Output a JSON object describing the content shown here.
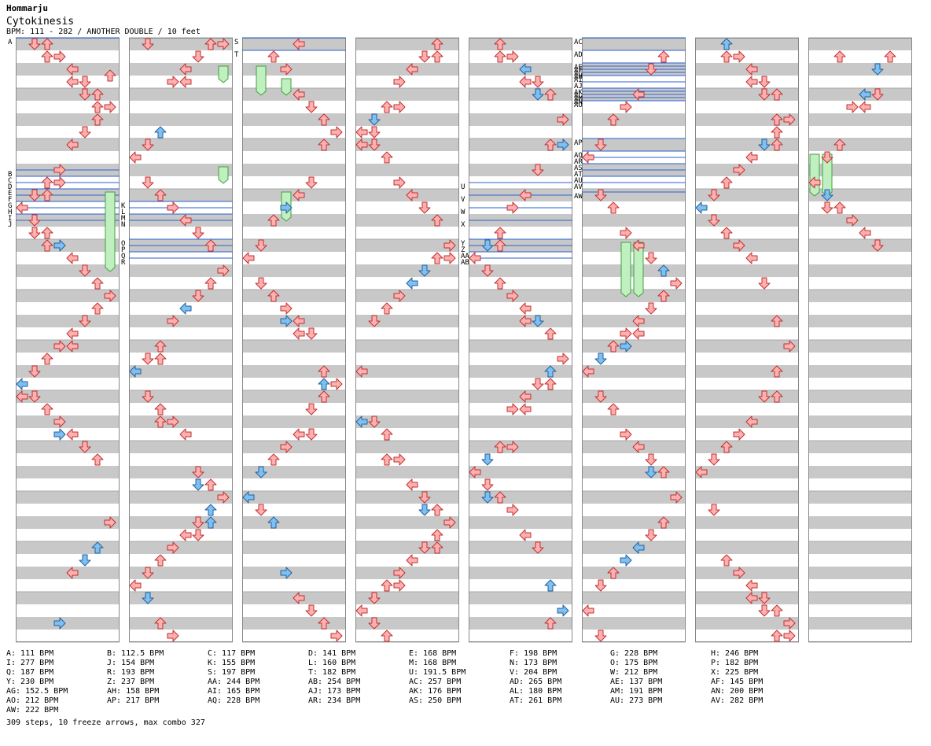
{
  "header": {
    "title": "Hommarju",
    "song": "Cytokinesis",
    "info": "BPM: 111 - 282 / ANOTHER DOUBLE / 10 feet"
  },
  "colors": {
    "red_arrow": "#ffb0b0",
    "red_edge": "#c03030",
    "blue_arrow": "#80c0f0",
    "blue_edge": "#2060a0",
    "freeze": "#c0f0c0",
    "freeze_edge": "#40a040",
    "band": "#c8c8c8",
    "bpm_line": "#2b5fd0"
  },
  "chart_data": {
    "type": "step-chart",
    "columns": 8,
    "measures_per_column": 4,
    "section_labels": [
      {
        "col": 0,
        "measure": 0,
        "sub": 0,
        "label": "A"
      },
      {
        "col": 0,
        "measure": 2,
        "sub": 10,
        "label": "B"
      },
      {
        "col": 0,
        "measure": 2,
        "sub": 12,
        "label": "C"
      },
      {
        "col": 0,
        "measure": 2,
        "sub": 14,
        "label": "D"
      },
      {
        "col": 0,
        "measure": 3,
        "sub": 0,
        "label": "E"
      },
      {
        "col": 0,
        "measure": 3,
        "sub": 2,
        "label": "F"
      },
      {
        "col": 0,
        "measure": 3,
        "sub": 4,
        "label": "G"
      },
      {
        "col": 0,
        "measure": 3,
        "sub": 6,
        "label": "H"
      },
      {
        "col": 0,
        "measure": 3,
        "sub": 8,
        "label": "I"
      },
      {
        "col": 0,
        "measure": 3,
        "sub": 10,
        "label": "J"
      },
      {
        "col": 1,
        "measure": 3,
        "sub": 4,
        "label": "K"
      },
      {
        "col": 1,
        "measure": 3,
        "sub": 6,
        "label": "L"
      },
      {
        "col": 1,
        "measure": 3,
        "sub": 8,
        "label": "M"
      },
      {
        "col": 1,
        "measure": 3,
        "sub": 10,
        "label": "N"
      },
      {
        "col": 1,
        "measure": 4,
        "sub": 0,
        "label": "O"
      },
      {
        "col": 1,
        "measure": 4,
        "sub": 2,
        "label": "P"
      },
      {
        "col": 1,
        "measure": 4,
        "sub": 4,
        "label": "Q"
      },
      {
        "col": 1,
        "measure": 4,
        "sub": 6,
        "label": "R"
      },
      {
        "col": 2,
        "measure": 0,
        "sub": 0,
        "label": "S"
      },
      {
        "col": 2,
        "measure": 0,
        "sub": 4,
        "label": "T"
      },
      {
        "col": 4,
        "measure": 2,
        "sub": 14,
        "label": "U"
      },
      {
        "col": 4,
        "measure": 3,
        "sub": 2,
        "label": "V"
      },
      {
        "col": 4,
        "measure": 3,
        "sub": 6,
        "label": "W"
      },
      {
        "col": 4,
        "measure": 3,
        "sub": 10,
        "label": "X"
      },
      {
        "col": 4,
        "measure": 4,
        "sub": 0,
        "label": "Y"
      },
      {
        "col": 4,
        "measure": 4,
        "sub": 2,
        "label": "Z"
      },
      {
        "col": 4,
        "measure": 4,
        "sub": 4,
        "label": "AA"
      },
      {
        "col": 4,
        "measure": 4,
        "sub": 6,
        "label": "AB"
      },
      {
        "col": 5,
        "measure": 0,
        "sub": 0,
        "label": "AC"
      },
      {
        "col": 5,
        "measure": 0,
        "sub": 4,
        "label": "AD"
      },
      {
        "col": 5,
        "measure": 0,
        "sub": 8,
        "label": "AE"
      },
      {
        "col": 5,
        "measure": 0,
        "sub": 9,
        "label": "AF"
      },
      {
        "col": 5,
        "measure": 0,
        "sub": 10,
        "label": "AG"
      },
      {
        "col": 5,
        "measure": 0,
        "sub": 11,
        "label": "AH"
      },
      {
        "col": 5,
        "measure": 0,
        "sub": 12,
        "label": "AI"
      },
      {
        "col": 5,
        "measure": 0,
        "sub": 14,
        "label": "AJ"
      },
      {
        "col": 5,
        "measure": 1,
        "sub": 0,
        "label": "AK"
      },
      {
        "col": 5,
        "measure": 1,
        "sub": 1,
        "label": "AL"
      },
      {
        "col": 5,
        "measure": 1,
        "sub": 2,
        "label": "AM"
      },
      {
        "col": 5,
        "measure": 1,
        "sub": 3,
        "label": "AN"
      },
      {
        "col": 5,
        "measure": 1,
        "sub": 4,
        "label": "AO"
      },
      {
        "col": 5,
        "measure": 2,
        "sub": 0,
        "label": "AP"
      },
      {
        "col": 5,
        "measure": 2,
        "sub": 4,
        "label": "AQ"
      },
      {
        "col": 5,
        "measure": 2,
        "sub": 6,
        "label": "AR"
      },
      {
        "col": 5,
        "measure": 2,
        "sub": 8,
        "label": "AS"
      },
      {
        "col": 5,
        "measure": 2,
        "sub": 10,
        "label": "AT"
      },
      {
        "col": 5,
        "measure": 2,
        "sub": 12,
        "label": "AU"
      },
      {
        "col": 5,
        "measure": 2,
        "sub": 14,
        "label": "AV"
      },
      {
        "col": 5,
        "measure": 3,
        "sub": 1,
        "label": "AW"
      }
    ],
    "notes_sample": [
      {
        "col": 0,
        "row": 2.5,
        "lane": 7,
        "dir": "up",
        "color": "red"
      },
      {
        "col": 1,
        "row": 0.0,
        "lane": 1,
        "dir": "down",
        "color": "red"
      },
      {
        "col": 2,
        "row": 0.0,
        "lane": 4,
        "dir": "left",
        "color": "red"
      },
      {
        "col": 7,
        "row": 1.0,
        "lane": 2,
        "dir": "up",
        "color": "red"
      }
    ],
    "freezes": [
      {
        "col": 0,
        "lane": 7,
        "from": 24,
        "to": 36
      },
      {
        "col": 1,
        "lane": 7,
        "from": 4,
        "to": 6
      },
      {
        "col": 1,
        "lane": 7,
        "from": 20,
        "to": 22
      },
      {
        "col": 2,
        "lane": 1,
        "from": 4,
        "to": 8
      },
      {
        "col": 2,
        "lane": 3,
        "from": 6,
        "to": 8
      },
      {
        "col": 2,
        "lane": 3,
        "from": 24,
        "to": 28
      },
      {
        "col": 5,
        "lane": 3,
        "from": 32,
        "to": 40
      },
      {
        "col": 5,
        "lane": 4,
        "from": 32,
        "to": 40
      },
      {
        "col": 7,
        "lane": 0,
        "from": 18,
        "to": 24
      },
      {
        "col": 7,
        "lane": 1,
        "from": 18,
        "to": 24
      }
    ]
  },
  "legend": [
    [
      "A: 111 BPM",
      "B: 112.5 BPM",
      "C: 117 BPM",
      "D: 141 BPM",
      "E: 168 BPM",
      "F: 198 BPM",
      "G: 228 BPM",
      "H: 246 BPM"
    ],
    [
      "I: 277 BPM",
      "J: 154 BPM",
      "K: 155 BPM",
      "L: 160 BPM",
      "M: 168 BPM",
      "N: 173 BPM",
      "O: 175 BPM",
      "P: 182 BPM"
    ],
    [
      "Q: 187 BPM",
      "R: 193 BPM",
      "S: 197 BPM",
      "T: 182 BPM",
      "U: 191.5 BPM",
      "V: 204 BPM",
      "W: 212 BPM",
      "X: 225 BPM"
    ],
    [
      "Y: 230 BPM",
      "Z: 237 BPM",
      "AA: 244 BPM",
      "AB: 254 BPM",
      "AC: 257 BPM",
      "AD: 265 BPM",
      "AE: 137 BPM",
      "AF: 145 BPM"
    ],
    [
      "AG: 152.5 BPM",
      "AH: 158 BPM",
      "AI: 165 BPM",
      "AJ: 173 BPM",
      "AK: 176 BPM",
      "AL: 180 BPM",
      "AM: 191 BPM",
      "AN: 200 BPM"
    ],
    [
      "AO: 212 BPM",
      "AP: 217 BPM",
      "AQ: 228 BPM",
      "AR: 234 BPM",
      "AS: 250 BPM",
      "AT: 261 BPM",
      "AU: 273 BPM",
      "AV: 282 BPM"
    ],
    [
      "AW: 222 BPM"
    ]
  ],
  "summary": "309 steps, 10 freeze arrows, max combo 327"
}
